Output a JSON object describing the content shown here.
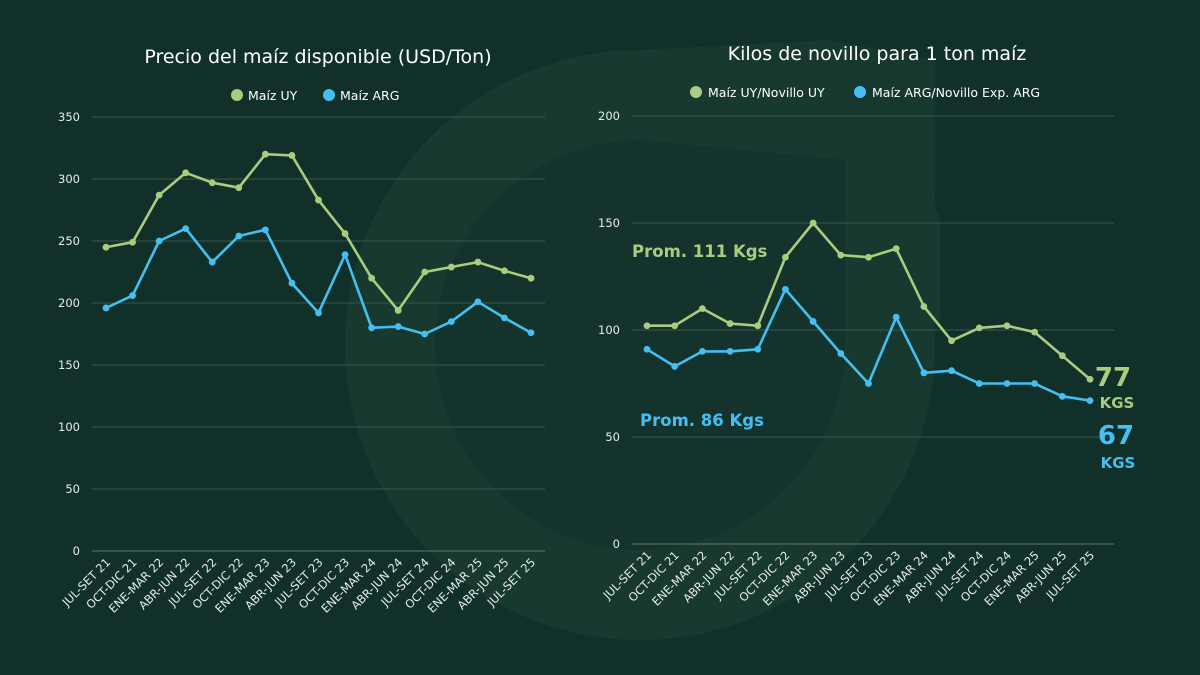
{
  "colors": {
    "background": "#12302a",
    "series_uy": "#a8cd7e",
    "series_arg": "#45bff0",
    "watermark": "#1c4034"
  },
  "watermark_icon": "brand-logo-watermark-icon",
  "chart_data": [
    {
      "type": "line",
      "title": "Precio del maíz disponible (USD/Ton)",
      "legend_position": "top-center",
      "grid": true,
      "ylim": [
        0,
        350
      ],
      "yticks": [
        0,
        50,
        100,
        150,
        200,
        250,
        300,
        350
      ],
      "categories": [
        "JUL-SET 21",
        "OCT-DIC 21",
        "ENE-MAR 22",
        "ABR-JUN 22",
        "JUL-SET 22",
        "OCT-DIC 22",
        "ENE-MAR 23",
        "ABR-JUN 23",
        "JUL-SET 23",
        "OCT-DIC 23",
        "ENE-MAR 24",
        "ABR-JUN 24",
        "JUL-SET 24",
        "OCT-DIC 24",
        "ENE-MAR 25",
        "ABR-JUN 25",
        "JUL-SET 25"
      ],
      "series": [
        {
          "name": "Maíz UY",
          "color": "#a8cd7e",
          "values": [
            245,
            249,
            287,
            305,
            297,
            293,
            320,
            319,
            283,
            256,
            220,
            194,
            225,
            229,
            233,
            226,
            220
          ]
        },
        {
          "name": "Maíz ARG",
          "color": "#45bff0",
          "values": [
            196,
            206,
            250,
            260,
            233,
            254,
            259,
            216,
            192,
            239,
            180,
            181,
            175,
            185,
            201,
            188,
            176
          ]
        }
      ]
    },
    {
      "type": "line",
      "title": "Kilos de novillo para 1 ton maíz",
      "legend_position": "top-center",
      "grid": true,
      "ylim": [
        0,
        200
      ],
      "yticks": [
        0,
        50,
        100,
        150,
        200
      ],
      "categories": [
        "JUL-SET 21",
        "OCT-DIC 21",
        "ENE-MAR 22",
        "ABR-JUN 22",
        "JUL-SET 22",
        "OCT-DIC 22",
        "ENE-MAR 23",
        "ABR-JUN 23",
        "JUL-SET 23",
        "OCT-DIC 23",
        "ENE-MAR 24",
        "ABR-JUN 24",
        "JUL-SET 24",
        "OCT-DIC 24",
        "ENE-MAR 25",
        "ABR-JUN 25",
        "JUL-SET 25"
      ],
      "series": [
        {
          "name": "Maíz UY/Novillo UY",
          "color": "#a8cd7e",
          "values": [
            102,
            102,
            110,
            103,
            102,
            134,
            150,
            135,
            134,
            138,
            111,
            95,
            101,
            102,
            99,
            88,
            77
          ]
        },
        {
          "name": "Maíz ARG/Novillo Exp. ARG",
          "color": "#45bff0",
          "values": [
            91,
            83,
            90,
            90,
            91,
            119,
            104,
            89,
            75,
            106,
            80,
            81,
            75,
            75,
            75,
            69,
            67
          ]
        }
      ],
      "annotations": {
        "avg_uy": "Prom. 111 Kgs",
        "avg_arg": "Prom. 86 Kgs",
        "end_uy_value": "77",
        "end_uy_unit": "KGS",
        "end_arg_value": "67",
        "end_arg_unit": "KGS"
      }
    }
  ]
}
